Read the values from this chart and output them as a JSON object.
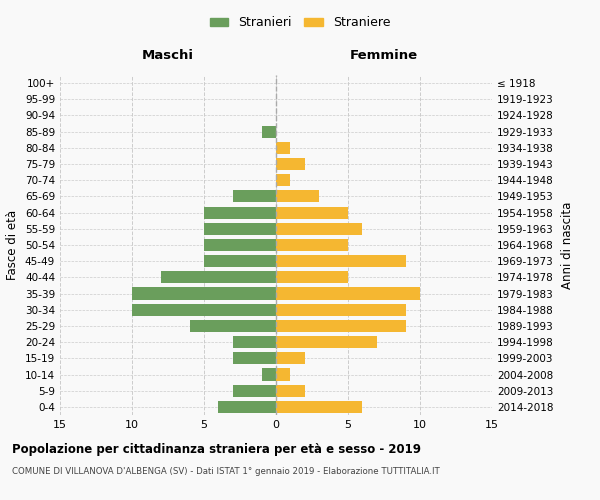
{
  "age_groups": [
    "100+",
    "95-99",
    "90-94",
    "85-89",
    "80-84",
    "75-79",
    "70-74",
    "65-69",
    "60-64",
    "55-59",
    "50-54",
    "45-49",
    "40-44",
    "35-39",
    "30-34",
    "25-29",
    "20-24",
    "15-19",
    "10-14",
    "5-9",
    "0-4"
  ],
  "birth_years": [
    "≤ 1918",
    "1919-1923",
    "1924-1928",
    "1929-1933",
    "1934-1938",
    "1939-1943",
    "1944-1948",
    "1949-1953",
    "1954-1958",
    "1959-1963",
    "1964-1968",
    "1969-1973",
    "1974-1978",
    "1979-1983",
    "1984-1988",
    "1989-1993",
    "1994-1998",
    "1999-2003",
    "2004-2008",
    "2009-2013",
    "2014-2018"
  ],
  "males": [
    0,
    0,
    0,
    1,
    0,
    0,
    0,
    3,
    5,
    5,
    5,
    5,
    8,
    10,
    10,
    6,
    3,
    3,
    1,
    3,
    4
  ],
  "females": [
    0,
    0,
    0,
    0,
    1,
    2,
    1,
    3,
    5,
    6,
    5,
    9,
    5,
    10,
    9,
    9,
    7,
    2,
    1,
    2,
    6
  ],
  "male_color": "#6a9e5c",
  "female_color": "#f5b731",
  "title": "Popolazione per cittadinanza straniera per età e sesso - 2019",
  "subtitle": "COMUNE DI VILLANOVA D'ALBENGA (SV) - Dati ISTAT 1° gennaio 2019 - Elaborazione TUTTITALIA.IT",
  "xlabel_left": "Maschi",
  "xlabel_right": "Femmine",
  "ylabel_left": "Fasce di età",
  "ylabel_right": "Anni di nascita",
  "legend_males": "Stranieri",
  "legend_females": "Straniere",
  "xlim": 15,
  "background_color": "#f9f9f9",
  "grid_color": "#cccccc"
}
